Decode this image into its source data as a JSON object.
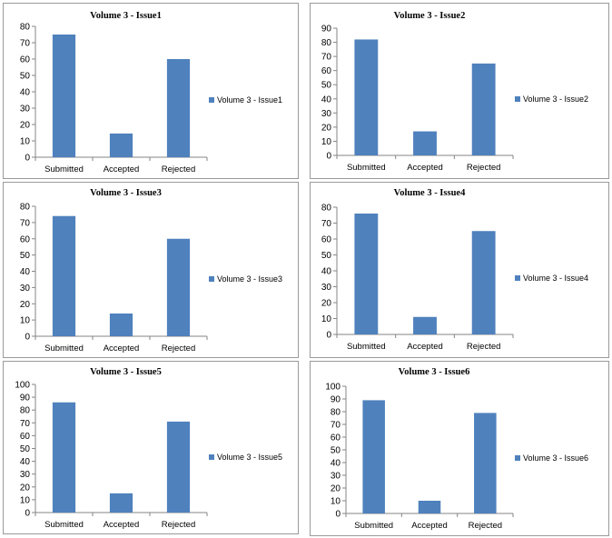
{
  "bar_color": "#4F81BD",
  "chart_data": [
    {
      "type": "bar",
      "title": "Volume 3 - Issue1",
      "categories": [
        "Submitted",
        "Accepted",
        "Rejected"
      ],
      "series": [
        {
          "name": "Volume 3 - Issue1",
          "values": [
            75,
            14.5,
            60
          ]
        }
      ],
      "ylim": [
        0,
        80
      ],
      "yticks": [
        0,
        10,
        20,
        30,
        40,
        50,
        60,
        70,
        80
      ],
      "legend": "right"
    },
    {
      "type": "bar",
      "title": "Volume 3 - Issue2",
      "categories": [
        "Submitted",
        "Accepted",
        "Rejected"
      ],
      "series": [
        {
          "name": "Volume 3 - Issue2",
          "values": [
            82,
            17,
            65
          ]
        }
      ],
      "ylim": [
        0,
        90
      ],
      "yticks": [
        0,
        10,
        20,
        30,
        40,
        50,
        60,
        70,
        80,
        90
      ],
      "legend": "right"
    },
    {
      "type": "bar",
      "title": "Volume 3 - Issue3",
      "categories": [
        "Submitted",
        "Accepted",
        "Rejected"
      ],
      "series": [
        {
          "name": "Volume 3 - Issue3",
          "values": [
            74,
            14,
            60
          ]
        }
      ],
      "ylim": [
        0,
        80
      ],
      "yticks": [
        0,
        10,
        20,
        30,
        40,
        50,
        60,
        70,
        80
      ],
      "legend": "right"
    },
    {
      "type": "bar",
      "title": "Volume 3 - Issue4",
      "categories": [
        "Submitted",
        "Accepted",
        "Rejected"
      ],
      "series": [
        {
          "name": "Volume 3 - Issue4",
          "values": [
            76,
            11,
            65
          ]
        }
      ],
      "ylim": [
        0,
        80
      ],
      "yticks": [
        0,
        10,
        20,
        30,
        40,
        50,
        60,
        70,
        80
      ],
      "legend": "right"
    },
    {
      "type": "bar",
      "title": "Volume 3 - Issue5",
      "categories": [
        "Submitted",
        "Accepted",
        "Rejected"
      ],
      "series": [
        {
          "name": "Volume 3 - Issue5",
          "values": [
            86,
            15,
            71
          ]
        }
      ],
      "ylim": [
        0,
        100
      ],
      "yticks": [
        0,
        10,
        20,
        30,
        40,
        50,
        60,
        70,
        80,
        90,
        100
      ],
      "legend": "right"
    },
    {
      "type": "bar",
      "title": "Volume 3 - Issue6",
      "categories": [
        "Submitted",
        "Accepted",
        "Rejected"
      ],
      "series": [
        {
          "name": "Volume 3 - Issue6",
          "values": [
            89,
            10,
            79
          ]
        }
      ],
      "ylim": [
        0,
        100
      ],
      "yticks": [
        0,
        10,
        20,
        30,
        40,
        50,
        60,
        70,
        80,
        90,
        100
      ],
      "legend": "right"
    }
  ]
}
